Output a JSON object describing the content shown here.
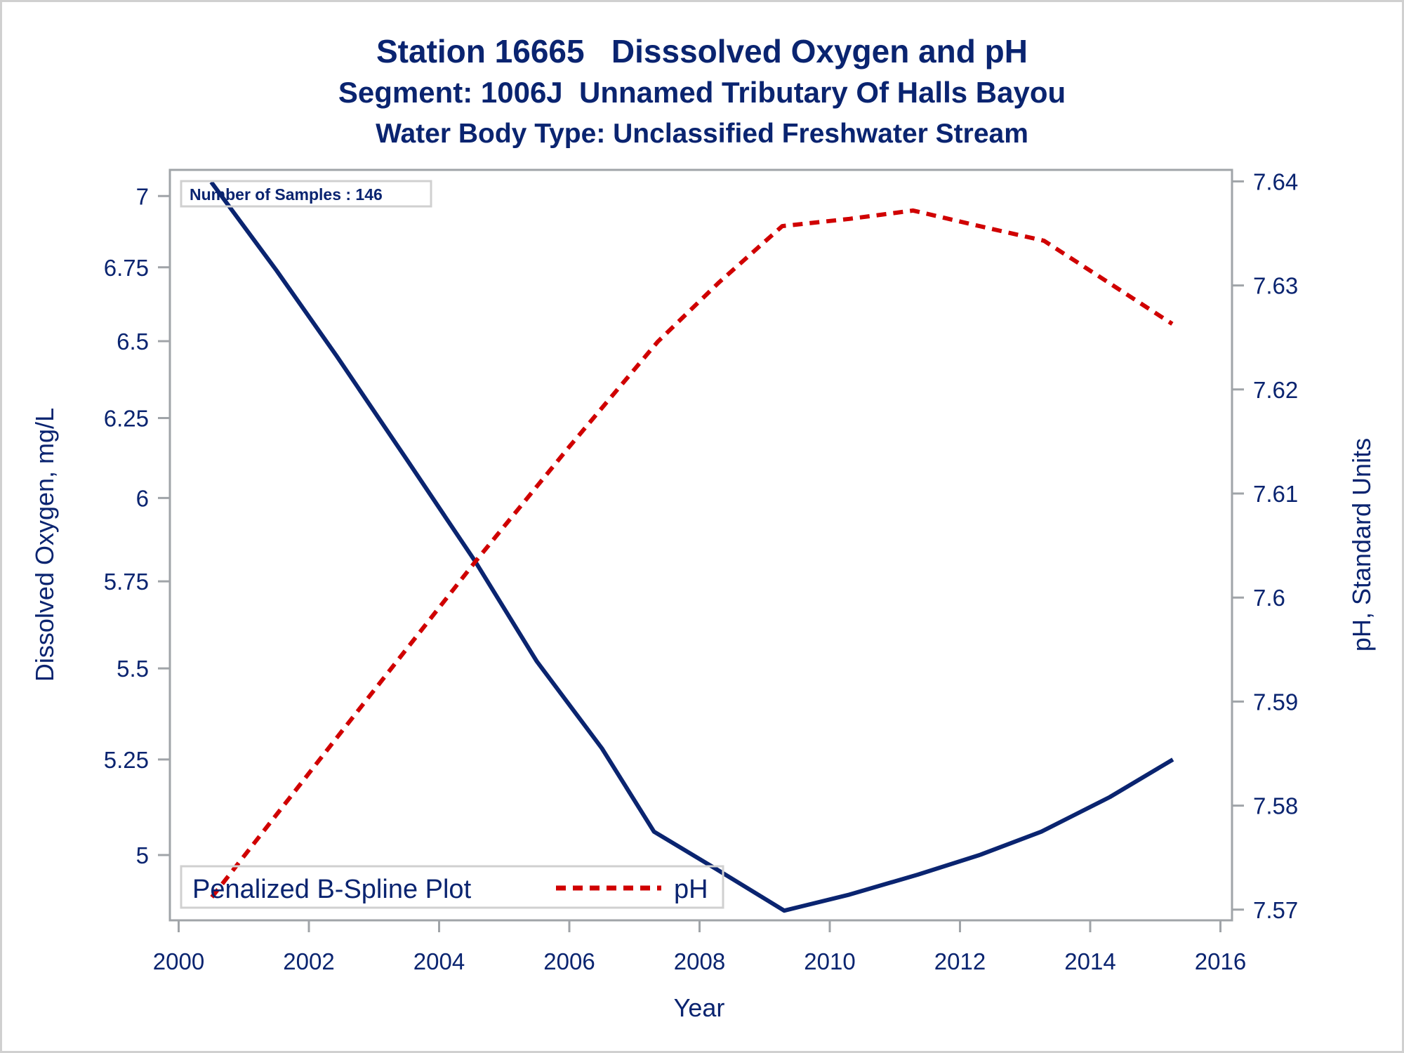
{
  "titles": [
    "Station 16665   Disssolved Oxygen and pH",
    "Segment: 1006J  Unnamed Tributary Of Halls Bayou",
    "Water Body Type: Unclassified Freshwater Stream"
  ],
  "chart_data": {
    "type": "line",
    "title": "Station 16665   Disssolved Oxygen and pH",
    "subtitles": [
      "Segment: 1006J  Unnamed Tributary Of Halls Bayou",
      "Water Body Type: Unclassified Freshwater Stream"
    ],
    "xlabel": "Year",
    "ylabel": "Dissolved Oxygen, mg/L",
    "y2label": "pH, Standard Units",
    "xlim": [
      2000,
      2016
    ],
    "xticks": [
      "2000",
      "2002",
      "2004",
      "2006",
      "2008",
      "2010",
      "2012",
      "2014",
      "2016"
    ],
    "xtick_values": [
      2000,
      2002,
      2004,
      2006,
      2008,
      2010,
      2012,
      2014,
      2016
    ],
    "yscale": "log",
    "ylim": [
      4.835,
      7.088
    ],
    "yticks": [
      "7",
      "6.75",
      "6.5",
      "6.25",
      "6",
      "5.75",
      "5.5",
      "5.25",
      "5"
    ],
    "ytick_values": [
      7,
      6.75,
      6.5,
      6.25,
      6,
      5.75,
      5.5,
      5.25,
      5
    ],
    "y2lim": [
      7.5697,
      7.6414
    ],
    "y2ticks": [
      "7.64",
      "7.63",
      "7.62",
      "7.61",
      "7.6",
      "7.59",
      "7.58",
      "7.57"
    ],
    "y2tick_values": [
      7.64,
      7.63,
      7.62,
      7.61,
      7.6,
      7.59,
      7.58,
      7.57
    ],
    "grid": false,
    "series": [
      {
        "name": "Dissolved Oxygen",
        "axis": "left",
        "style": "solid",
        "color": "#0a2470",
        "x": [
          2000.5,
          2001.5,
          2002.43,
          2003.5,
          2004.55,
          2005.5,
          2006.5,
          2007.3,
          2008.3,
          2009.3,
          2010.3,
          2011.35,
          2012.3,
          2013.25,
          2014.3,
          2015.27
        ],
        "y": [
          7.05,
          6.74,
          6.45,
          6.12,
          5.81,
          5.52,
          5.28,
          5.06,
          4.96,
          4.86,
          4.9,
          4.95,
          5.0,
          5.06,
          5.15,
          5.25
        ]
      },
      {
        "name": "pH",
        "axis": "right",
        "style": "dashed",
        "color": "#d00000",
        "x": [
          2000.51,
          2002.5,
          2004.55,
          2006.0,
          2007.36,
          2008.3,
          2009.27,
          2010.3,
          2011.28,
          2012.3,
          2013.29,
          2014.3,
          2015.26
        ],
        "y": [
          7.5712,
          7.5871,
          7.6034,
          7.6145,
          7.6246,
          7.6303,
          7.6357,
          7.6364,
          7.6372,
          7.6357,
          7.6343,
          7.6302,
          7.6263
        ]
      }
    ],
    "annotations": [
      "Number of Samples : 146"
    ],
    "legend": {
      "position": "bottom-left-inside",
      "title": "Penalized B-Spline Plot",
      "entries": [
        {
          "label": "pH",
          "style": "dashed",
          "color": "#d00000"
        }
      ]
    }
  },
  "colors": {
    "text": "#0a2470",
    "do_line": "#0a2470",
    "ph_line": "#d00000",
    "frame": "#a0a4a8",
    "box_border": "#d0d0d0"
  }
}
